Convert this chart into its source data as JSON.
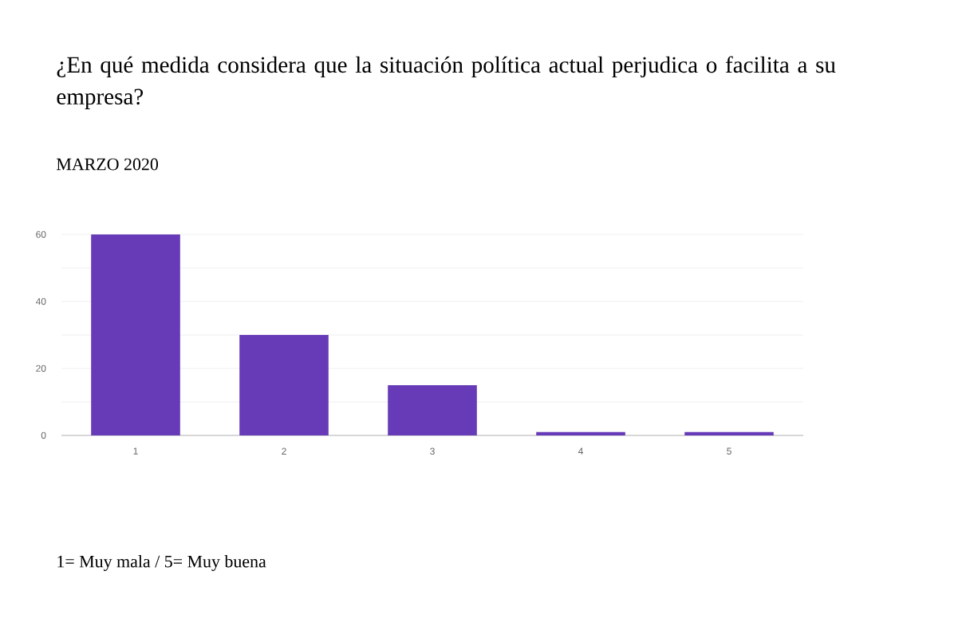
{
  "chart_data": {
    "type": "bar",
    "title": "¿En qué medida considera que la situación política actual perjudica o facilita a su empresa?",
    "subtitle": "MARZO 2020",
    "categories": [
      "1",
      "2",
      "3",
      "4",
      "5"
    ],
    "values": [
      60,
      30,
      15,
      1,
      1
    ],
    "color": "#673ab7",
    "ylim": [
      0,
      60
    ],
    "yticks": [
      0,
      {
        "value": 10,
        "label": null
      },
      20,
      {
        "value": 30,
        "label": null
      },
      40,
      {
        "value": 50,
        "label": null
      },
      60
    ],
    "grid": "y",
    "annotations": [
      "1= Muy mala / 5= Muy buena"
    ]
  }
}
